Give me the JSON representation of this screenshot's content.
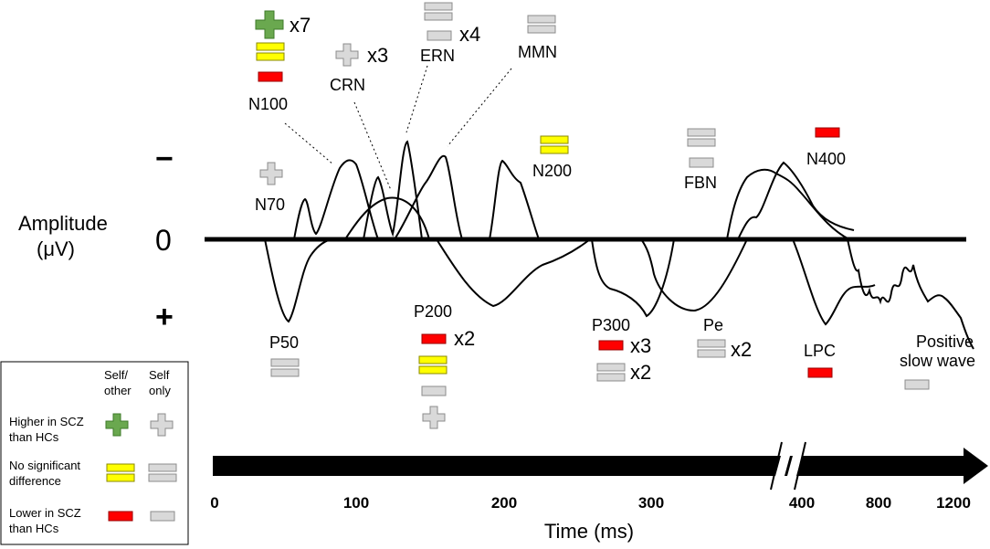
{
  "axis": {
    "y_title_line1": "Amplitude",
    "y_title_line2": "(μV)",
    "minus": "−",
    "zero": "0",
    "plus": "+",
    "x_title": "Time (ms)",
    "ticks": [
      "0",
      "100",
      "200",
      "300",
      "400",
      "800",
      "1200"
    ]
  },
  "components": {
    "n70": "N70",
    "n100": "N100",
    "crn": "CRN",
    "ern": "ERN",
    "mmn": "MMN",
    "n200": "N200",
    "fbn": "FBN",
    "n400": "N400",
    "p50": "P50",
    "p200": "P200",
    "p300": "P300",
    "pe": "Pe",
    "lpc": "LPC",
    "psw_line1": "Positive",
    "psw_line2": "slow wave"
  },
  "counts": {
    "n100_green": "x7",
    "crn_grey": "x3",
    "ern_grey": "x4",
    "p200_red": "x2",
    "p300_red": "x3",
    "p300_grey": "x2",
    "pe_grey": "x2"
  },
  "legend": {
    "col1_line1": "Self/",
    "col1_line2": "other",
    "col2_line1": "Self",
    "col2_line2": "only",
    "row1_line1": "Higher in SCZ",
    "row1_line2": "than HCs",
    "row2_line1": "No significant",
    "row2_line2": "difference",
    "row3_line1": "Lower in SCZ",
    "row3_line2": "than HCs"
  },
  "colors": {
    "higher": "#6aa84f",
    "no_difference": "#ffff00",
    "lower": "#ff0000",
    "self_only": "#d9d9d9",
    "line": "#000000"
  }
}
